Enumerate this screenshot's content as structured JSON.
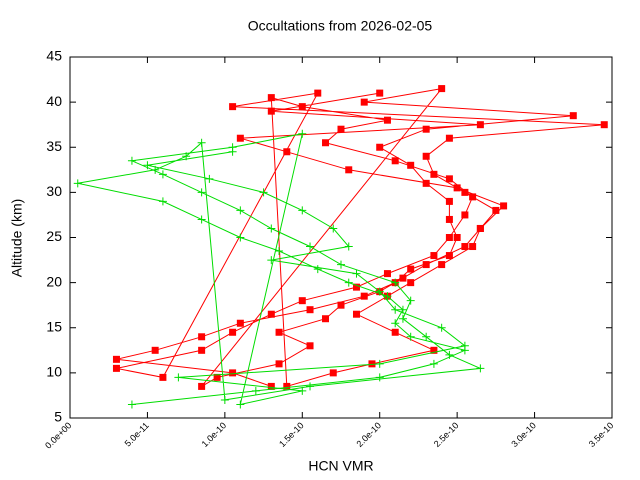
{
  "chart_data": {
    "type": "line",
    "title": "Occultations from 2026-02-05",
    "x_label": "HCN VMR",
    "y_label": "Altitude (km)",
    "xlim": [
      0,
      3.5e-10
    ],
    "ylim": [
      5,
      45
    ],
    "xticks": [
      {
        "value": 0,
        "label": "0.0e+00"
      },
      {
        "value": 5e-11,
        "label": "5.0e-11"
      },
      {
        "value": 1e-10,
        "label": "1.0e-10"
      },
      {
        "value": 1.5e-10,
        "label": "1.5e-10"
      },
      {
        "value": 2e-10,
        "label": "2.0e-10"
      },
      {
        "value": 2.5e-10,
        "label": "2.5e-10"
      },
      {
        "value": 3e-10,
        "label": "3.0e-10"
      },
      {
        "value": 3.5e-10,
        "label": "3.5e-10"
      }
    ],
    "yticks": [
      5,
      10,
      15,
      20,
      25,
      30,
      35,
      40,
      45
    ],
    "series": [
      {
        "color": "#ff0000",
        "marker": "square",
        "x": [
          1.3e-10,
          1.05e-10,
          3e-11,
          5.5e-11,
          8.5e-11,
          1.1e-10,
          1.55e-10,
          1.9e-10,
          2.1e-10,
          2.2e-10,
          2.45e-10,
          2.5e-10,
          2.45e-10,
          2.45e-10,
          2.3e-10,
          2.2e-10,
          2e-10,
          2.3e-10,
          3.25e-10,
          1.9e-10,
          2.4e-10,
          8.5e-11,
          9.5e-11,
          1.35e-10,
          1.55e-10,
          1.35e-10,
          1.65e-10,
          1.75e-10,
          2e-10,
          2.15e-10,
          2.3e-10,
          2.55e-10,
          2.65e-10,
          2.75e-10,
          2.55e-10,
          2.35e-10,
          2.3e-10,
          2.45e-10,
          3.45e-10,
          1.05e-10,
          1.6e-10,
          6e-11,
          3e-11,
          8.5e-11,
          1.05e-10,
          1.3e-10,
          1.5e-10,
          1.85e-10,
          2.05e-10,
          2.35e-10,
          2.45e-10,
          2.55e-10,
          2.6e-10,
          2.45e-10,
          2.1e-10,
          1.65e-10,
          1.75e-10,
          2.05e-10,
          1.5e-10,
          1.3e-10,
          1.4e-10,
          1.7e-10,
          1.95e-10,
          2.35e-10,
          2.1e-10,
          1.85e-10,
          2.05e-10,
          2.2e-10,
          2.4e-10,
          2.6e-10,
          2.65e-10,
          2.8e-10,
          2.5e-10,
          1.8e-10,
          1.4e-10,
          1.1e-10,
          2.65e-10,
          1.3e-10,
          2e-10
        ],
        "values": [
          8.5,
          10,
          11.5,
          12.5,
          14,
          15.5,
          17,
          18.5,
          20,
          21.5,
          23,
          25,
          27,
          29,
          31,
          33,
          35,
          37,
          38.5,
          40,
          41.5,
          8.5,
          9.5,
          11,
          13,
          14.5,
          16,
          17.5,
          19,
          20.5,
          22,
          24,
          26,
          28,
          30,
          32,
          34,
          36,
          37.5,
          39.5,
          41,
          9.5,
          10.5,
          12.5,
          14.5,
          16.5,
          18,
          19.5,
          21,
          23,
          25,
          27.5,
          29.5,
          31.5,
          33.5,
          35.5,
          37,
          38,
          39.5,
          40.5,
          8.5,
          10,
          11,
          12.5,
          14.5,
          16.5,
          18.5,
          20,
          22,
          24,
          26,
          28.5,
          30.5,
          32.5,
          34.5,
          36,
          37.5,
          39,
          41
        ]
      },
      {
        "color": "#00dd00",
        "marker": "plus",
        "x": [
          4e-11,
          1.2e-10,
          2e-10,
          2.35e-10,
          2.55e-10,
          2.2e-10,
          2.1e-10,
          2.15e-10,
          2.05e-10,
          1.8e-10,
          1.6e-10,
          1.35e-10,
          1.1e-10,
          8.5e-11,
          6e-11,
          5e-12,
          5.5e-11,
          7.5e-11,
          8.5e-11,
          1e-10,
          1.55e-10,
          2.65e-10,
          2.45e-10,
          2.3e-10,
          2.15e-10,
          2.2e-10,
          2.1e-10,
          1.75e-10,
          1.55e-10,
          1.3e-10,
          1.1e-10,
          8.5e-11,
          6e-11,
          4e-11,
          1.05e-10,
          1.5e-10,
          1.1e-10,
          1.5e-10,
          7e-11,
          2e-10,
          2.55e-10,
          2.4e-10,
          2.1e-10,
          2e-10,
          1.85e-10,
          1.3e-10,
          1.8e-10,
          1.7e-10,
          1.5e-10,
          1.25e-10,
          9e-11,
          5e-11,
          1.05e-10
        ],
        "values": [
          6.5,
          8,
          9.5,
          11,
          12.5,
          14,
          15.5,
          17,
          18.5,
          20,
          21.5,
          23.5,
          25,
          27,
          29,
          31,
          32.5,
          34,
          35.5,
          7,
          8.5,
          10.5,
          12,
          14,
          16,
          18,
          20,
          22,
          24,
          26,
          28,
          30,
          32,
          33.5,
          35,
          36.5,
          6.5,
          8,
          9.5,
          11,
          13,
          15,
          17,
          19,
          21,
          22.5,
          24,
          26,
          28,
          30,
          31.5,
          33,
          34.5
        ]
      }
    ]
  }
}
